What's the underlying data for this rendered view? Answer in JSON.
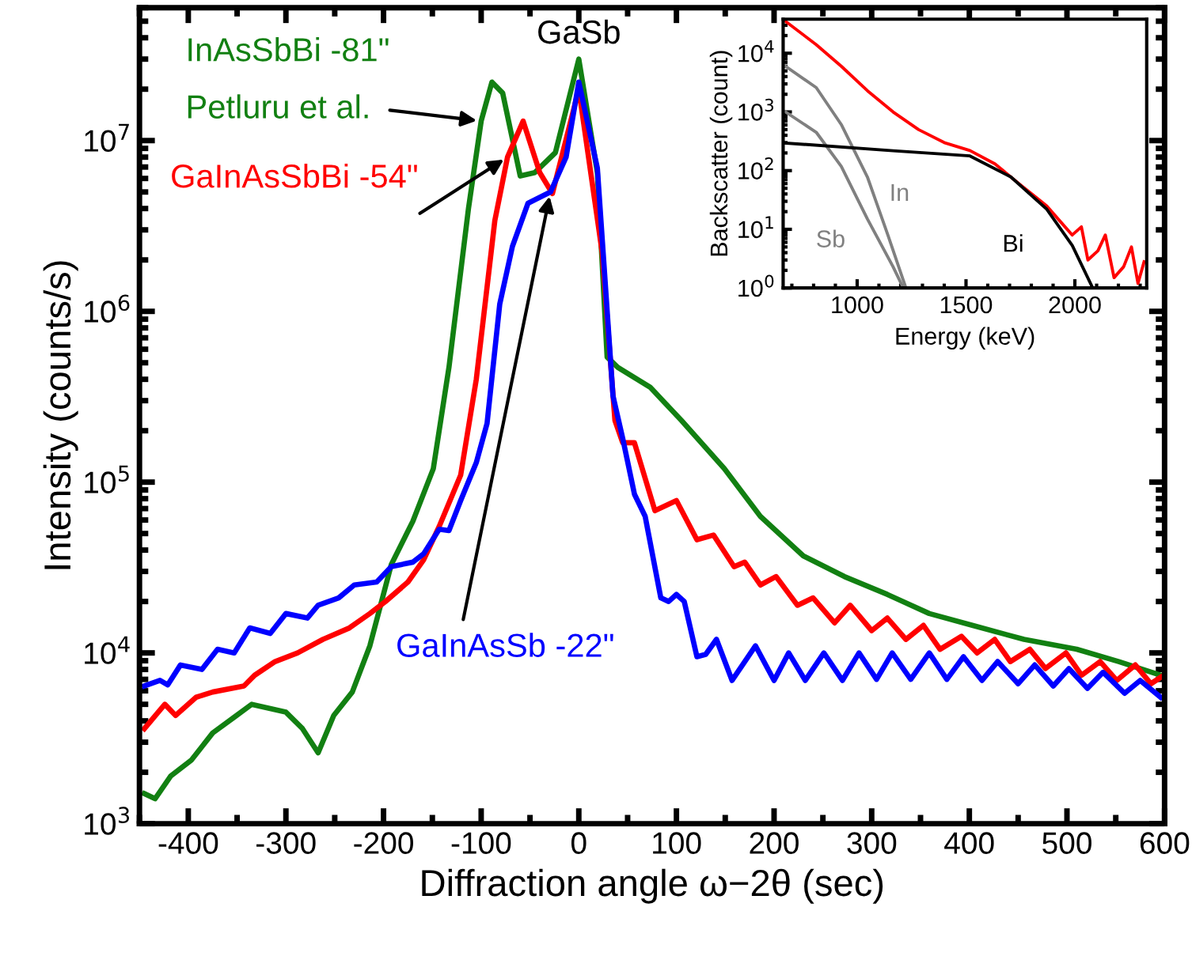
{
  "chart_data": [
    {
      "type": "line",
      "xlabel": "Diffraction angle ω−2θ (sec)",
      "ylabel": "Intensity (counts/s)",
      "log": "y",
      "grid": false,
      "legend": false,
      "marker": "none",
      "line_style": "solid",
      "xlim": [
        -450,
        600
      ],
      "xticks": [
        -400,
        -300,
        -200,
        -100,
        0,
        100,
        200,
        300,
        400,
        500,
        600
      ],
      "ylim": [
        1000,
        60000000
      ],
      "yticks": [
        {
          "value": 1000,
          "label": "10$^{3}$"
        },
        {
          "value": 10000,
          "label": "10$^{4}$"
        },
        {
          "value": 100000,
          "label": "10$^{5}$"
        },
        {
          "value": 1000000,
          "label": "10$^{6}$"
        },
        {
          "value": 10000000,
          "label": "10$^{7}$"
        }
      ],
      "annotations": [
        {
          "text": "GaSb",
          "x": 0,
          "y": 30000000
        }
      ],
      "series": [
        {
          "name": "InAsSbBi -81\"\nPetluru et al.",
          "color": "#128012",
          "x": [
            -445,
            -434,
            -418,
            -397,
            -375,
            -353,
            -335,
            -300,
            -283,
            -267,
            -251,
            -232,
            -214,
            -192,
            -170,
            -149,
            -133,
            -113,
            -100,
            -89,
            -78,
            -60,
            -45,
            -24,
            0,
            19,
            29,
            40,
            73,
            105,
            149,
            186,
            230,
            272,
            316,
            359,
            403,
            456,
            510,
            553,
            596
          ],
          "values": [
            1500,
            1400,
            1900,
            2350,
            3400,
            4200,
            5000,
            4500,
            3600,
            2600,
            4300,
            5900,
            11000,
            33000,
            59000,
            120000,
            470000,
            4000000,
            13000000,
            22000000,
            19000000,
            6200000,
            6500000,
            8500000,
            30000000,
            6500000,
            540000,
            470000,
            360000,
            230000,
            120000,
            63000,
            37000,
            28000,
            22000,
            17000,
            14500,
            12000,
            10500,
            8900,
            7400
          ]
        },
        {
          "name": "GaInAsSbBi -54\"",
          "color": "#ff0000",
          "x": [
            -445,
            -424,
            -413,
            -392,
            -375,
            -343,
            -332,
            -311,
            -288,
            -262,
            -235,
            -214,
            -198,
            -175,
            -159,
            -143,
            -121,
            -105,
            -86,
            -73,
            -57,
            -40,
            -27,
            0,
            24,
            37,
            45,
            57,
            78,
            100,
            121,
            138,
            159,
            170,
            186,
            202,
            224,
            240,
            262,
            278,
            300,
            316,
            335,
            353,
            370,
            392,
            408,
            426,
            442,
            462,
            478,
            499,
            515,
            534,
            551,
            570,
            586,
            596
          ],
          "values": [
            3600,
            5000,
            4300,
            5500,
            5900,
            6400,
            7400,
            8900,
            10000,
            12000,
            14000,
            17000,
            20000,
            26000,
            35000,
            55000,
            110000,
            400000,
            3400000,
            8000000,
            13000000,
            6500000,
            4900000,
            20000000,
            2200000,
            230000,
            170000,
            170000,
            68000,
            78000,
            46000,
            49000,
            32000,
            34000,
            25000,
            28000,
            19000,
            21000,
            15000,
            19000,
            13500,
            16000,
            12000,
            14500,
            10500,
            12500,
            10000,
            12000,
            8900,
            10500,
            8100,
            10000,
            7400,
            8900,
            6900,
            8500,
            6600,
            7200
          ]
        },
        {
          "name": "GaInAsSb -22\"",
          "color": "#0000ff",
          "x": [
            -445,
            -429,
            -421,
            -408,
            -386,
            -370,
            -353,
            -337,
            -316,
            -300,
            -278,
            -267,
            -246,
            -230,
            -207,
            -192,
            -170,
            -159,
            -143,
            -133,
            -121,
            -105,
            -94,
            -81,
            -68,
            -52,
            -29,
            -13,
            0,
            19,
            35,
            45,
            57,
            68,
            84,
            92,
            100,
            108,
            121,
            130,
            141,
            157,
            181,
            200,
            215,
            232,
            251,
            270,
            287,
            305,
            321,
            340,
            359,
            377,
            394,
            413,
            429,
            450,
            467,
            486,
            502,
            521,
            537,
            559,
            575,
            596
          ],
          "values": [
            6400,
            6900,
            6500,
            8500,
            8000,
            10500,
            10000,
            14000,
            13000,
            17000,
            16000,
            19000,
            21000,
            25000,
            26000,
            32000,
            34000,
            38000,
            53000,
            52000,
            78000,
            130000,
            220000,
            1100000,
            2400000,
            4300000,
            5000000,
            8000000,
            22000000,
            6900000,
            320000,
            180000,
            85000,
            63000,
            21000,
            20000,
            22000,
            20000,
            9500,
            9800,
            12000,
            6900,
            11000,
            6900,
            10000,
            6900,
            10000,
            6900,
            10000,
            7000,
            10000,
            7000,
            10000,
            7000,
            9500,
            6900,
            8900,
            6600,
            8500,
            6400,
            8100,
            6200,
            7700,
            5800,
            6900,
            5500
          ]
        }
      ]
    },
    {
      "type": "line",
      "xlabel": "Energy (keV)",
      "ylabel": "Backscatter (count)",
      "log": "y",
      "grid": false,
      "legend": false,
      "marker": "none",
      "line_style": "solid",
      "xlim": [
        660,
        2330
      ],
      "xticks": [
        1000,
        1500,
        2000
      ],
      "ylim": [
        1,
        38000
      ],
      "yticks": [
        {
          "value": 1,
          "label": "10$^{0}$"
        },
        {
          "value": 10,
          "label": "10$^{1}$"
        },
        {
          "value": 100,
          "label": "10$^{2}$"
        },
        {
          "value": 1000,
          "label": "10$^{3}$"
        },
        {
          "value": 10000,
          "label": "10$^{4}$"
        }
      ],
      "series": [
        {
          "color": "#ff0000",
          "x": [
            671,
            812,
            927,
            1047,
            1165,
            1282,
            1400,
            1518,
            1633,
            1753,
            1871,
            1930,
            1988,
            2030,
            2060,
            2106,
            2140,
            2180,
            2224,
            2260,
            2290,
            2318
          ],
          "values": [
            35000,
            14000,
            6000,
            2300,
            1000,
            500,
            300,
            220,
            130,
            56,
            25,
            14,
            8,
            11,
            3,
            4.3,
            8,
            1.5,
            2.3,
            5,
            1.2,
            2.8
          ]
        },
        {
          "name": "In",
          "color": "#808080",
          "x": [
            671,
            812,
            927,
            1047,
            1141,
            1224
          ],
          "values": [
            6000,
            2600,
            610,
            78,
            8,
            1
          ]
        },
        {
          "name": "Sb",
          "color": "#808080",
          "x": [
            671,
            812,
            927,
            1047,
            1165,
            1212
          ],
          "values": [
            1000,
            450,
            118,
            15,
            2.3,
            1
          ]
        },
        {
          "name": "Bi",
          "color": "#000000",
          "x": [
            671,
            1165,
            1518,
            1706,
            1871,
            1988,
            2082
          ],
          "values": [
            295,
            218,
            178,
            78,
            22,
            5.3,
            1
          ]
        }
      ]
    }
  ]
}
